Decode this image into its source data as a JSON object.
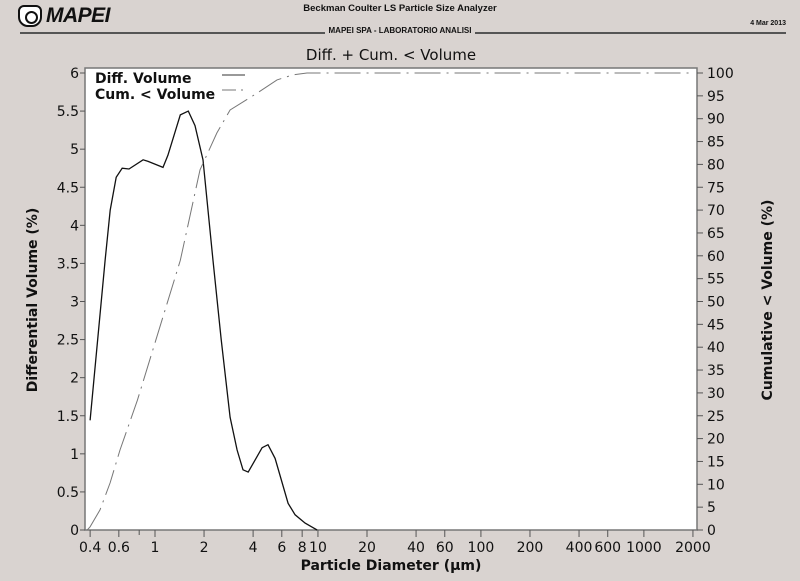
{
  "header": {
    "logo_text": "MAPEI",
    "app_title": "Beckman Coulter  LS Particle Size Analyzer",
    "lab_name": "MAPEI SPA - LABORATORIO ANALISI",
    "date": "4 Mar 2013"
  },
  "chart_data": {
    "type": "line",
    "title": "Diff. + Cum. < Volume",
    "xlabel": "Particle Diameter (µm)",
    "ylabel": "Differential Volume (%)",
    "y2label": "Cumulative < Volume (%)",
    "xscale": "log",
    "xlim": [
      0.372,
      2118
    ],
    "ylim": [
      0,
      6
    ],
    "y2lim": [
      0,
      100
    ],
    "legend_position": "top-left",
    "x_ticks": [
      0.4,
      0.6,
      1,
      2,
      4,
      6,
      8,
      10,
      20,
      40,
      60,
      100,
      200,
      400,
      600,
      1000,
      2000
    ],
    "x_tick_labels": [
      "0.4",
      "0.6",
      "1",
      "2",
      "4",
      "6",
      "8",
      "10",
      "20",
      "40",
      "60",
      "100",
      "200",
      "400",
      "600",
      "1000",
      "2000"
    ],
    "x_minor_ticks": [
      0.8
    ],
    "y_ticks": [
      0,
      0.5,
      1,
      1.5,
      2,
      2.5,
      3,
      3.5,
      4,
      4.5,
      5,
      5.5,
      6
    ],
    "y_tick_labels": [
      "0",
      "0.5",
      "1",
      "1.5",
      "2",
      "2.5",
      "3",
      "3.5",
      "4",
      "4.5",
      "5",
      "5.5",
      "6"
    ],
    "y2_ticks": [
      0,
      5,
      10,
      15,
      20,
      25,
      30,
      35,
      40,
      45,
      50,
      55,
      60,
      65,
      70,
      75,
      80,
      85,
      90,
      95,
      100
    ],
    "y2_tick_labels": [
      "0",
      "5",
      "10",
      "15",
      "20",
      "25",
      "30",
      "35",
      "40",
      "45",
      "50",
      "55",
      "60",
      "65",
      "70",
      "75",
      "80",
      "85",
      "90",
      "95",
      "100"
    ],
    "series": [
      {
        "name": "Diff. Volume",
        "axis": "left",
        "style": "solid",
        "color": "#111111",
        "x": [
          0.4,
          0.494,
          0.531,
          0.578,
          0.629,
          0.693,
          0.845,
          0.907,
          1.12,
          1.2,
          1.43,
          1.6,
          1.76,
          1.97,
          2.27,
          2.55,
          2.89,
          3.19,
          3.47,
          3.73,
          4.54,
          4.94,
          5.46,
          6.56,
          7.24,
          8.34,
          9.34,
          9.88
        ],
        "y": [
          1.44,
          3.54,
          4.2,
          4.63,
          4.75,
          4.74,
          4.86,
          4.84,
          4.76,
          4.92,
          5.45,
          5.5,
          5.31,
          4.86,
          3.54,
          2.5,
          1.48,
          1.05,
          0.79,
          0.76,
          1.08,
          1.12,
          0.94,
          0.35,
          0.2,
          0.09,
          0.03,
          0.0
        ]
      },
      {
        "name": "Cum. < Volume",
        "axis": "right",
        "style": "dashed",
        "color": "#777777",
        "x": [
          0.384,
          0.4,
          0.46,
          0.53,
          0.61,
          0.78,
          1.43,
          1.89,
          2.4,
          2.89,
          4.24,
          5.61,
          7.03,
          8.57,
          2000
        ],
        "y": [
          0,
          0.7,
          4.4,
          10.3,
          17.5,
          28.4,
          59,
          78.8,
          86.9,
          91.9,
          95.6,
          98.5,
          99.6,
          100,
          100
        ]
      }
    ]
  }
}
